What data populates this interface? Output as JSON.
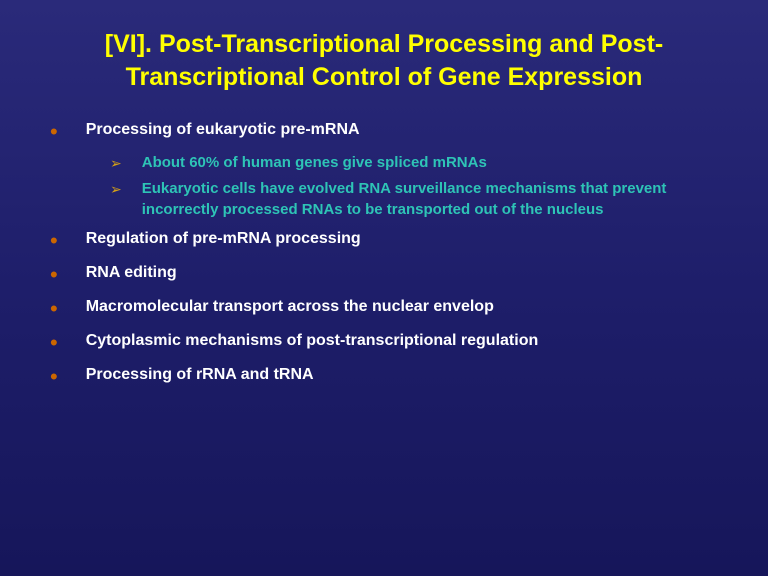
{
  "title": "[VI]. Post-Transcriptional Processing and Post-Transcriptional Control of Gene Expression",
  "colors": {
    "title": "#ffff00",
    "bullet_dot": "#cc6600",
    "bullet_text": "#ffffff",
    "sub_arrow": "#d4a017",
    "sub_text": "#2ec4b6",
    "bg_top": "#2a2a7a",
    "bg_bottom": "#16165a"
  },
  "typography": {
    "title_fontsize": 25,
    "bullet_fontsize": 16,
    "sub_fontsize": 15,
    "font_family": "Arial"
  },
  "bullets": [
    {
      "text": "Processing of eukaryotic pre-mRNA",
      "subs": [
        {
          "text": "About 60% of human genes give spliced mRNAs"
        },
        {
          "text": "Eukaryotic cells have evolved RNA surveillance mechanisms that prevent incorrectly processed RNAs to be transported out of the nucleus"
        }
      ]
    },
    {
      "text": "Regulation of pre-mRNA processing",
      "subs": []
    },
    {
      "text": "RNA editing",
      "subs": []
    },
    {
      "text": "Macromolecular transport across the nuclear envelop",
      "subs": []
    },
    {
      "text": "Cytoplasmic mechanisms of post-transcriptional regulation",
      "subs": []
    },
    {
      "text": "Processing of rRNA and tRNA",
      "subs": []
    }
  ]
}
